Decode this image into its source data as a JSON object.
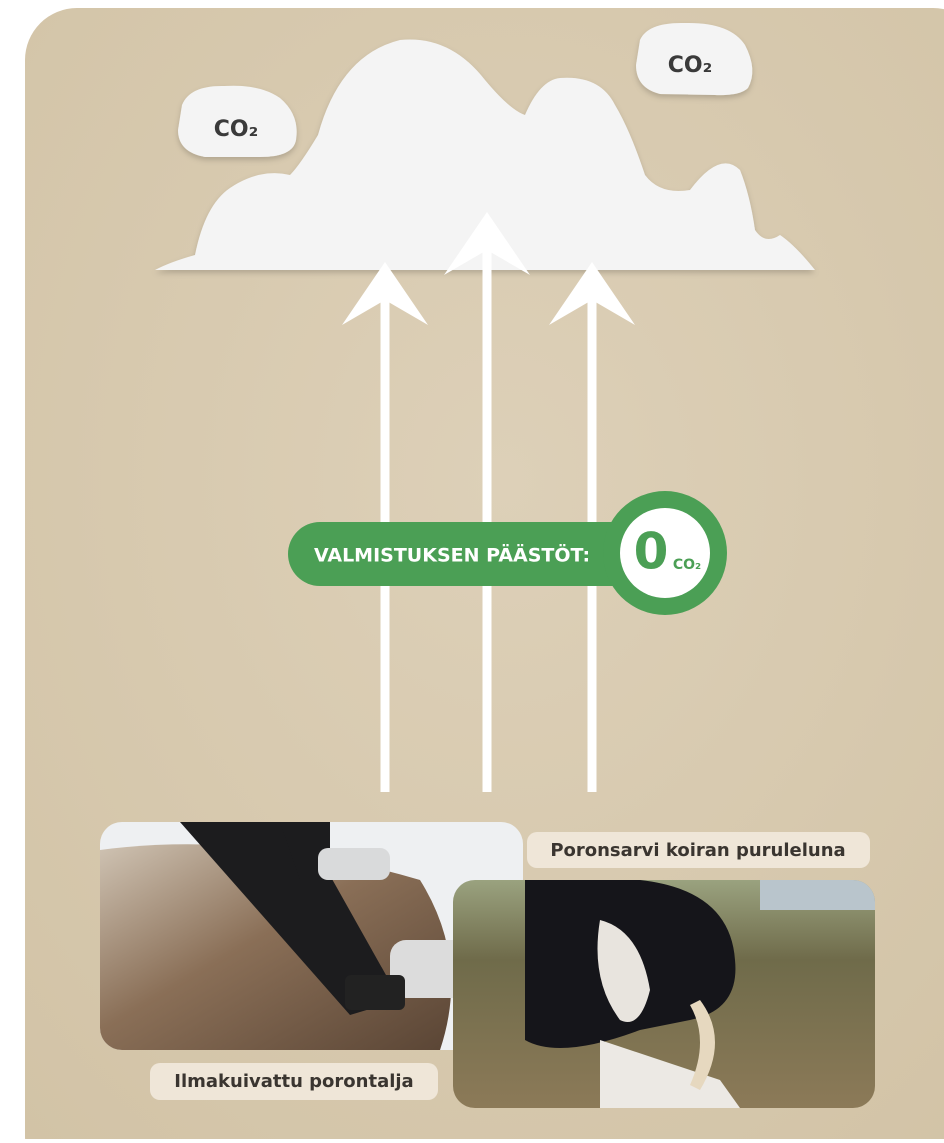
{
  "bubbles": [
    {
      "label": "CO₂"
    },
    {
      "label": "CO₂"
    }
  ],
  "badge": {
    "label": "VALMISTUKSEN PÄÄSTÖT:",
    "value": 0,
    "unit": "CO₂"
  },
  "photos": [
    {
      "caption": "Ilmakuivattu porontalja"
    },
    {
      "caption": "Poronsarvi koiran puruleluna"
    }
  ]
}
